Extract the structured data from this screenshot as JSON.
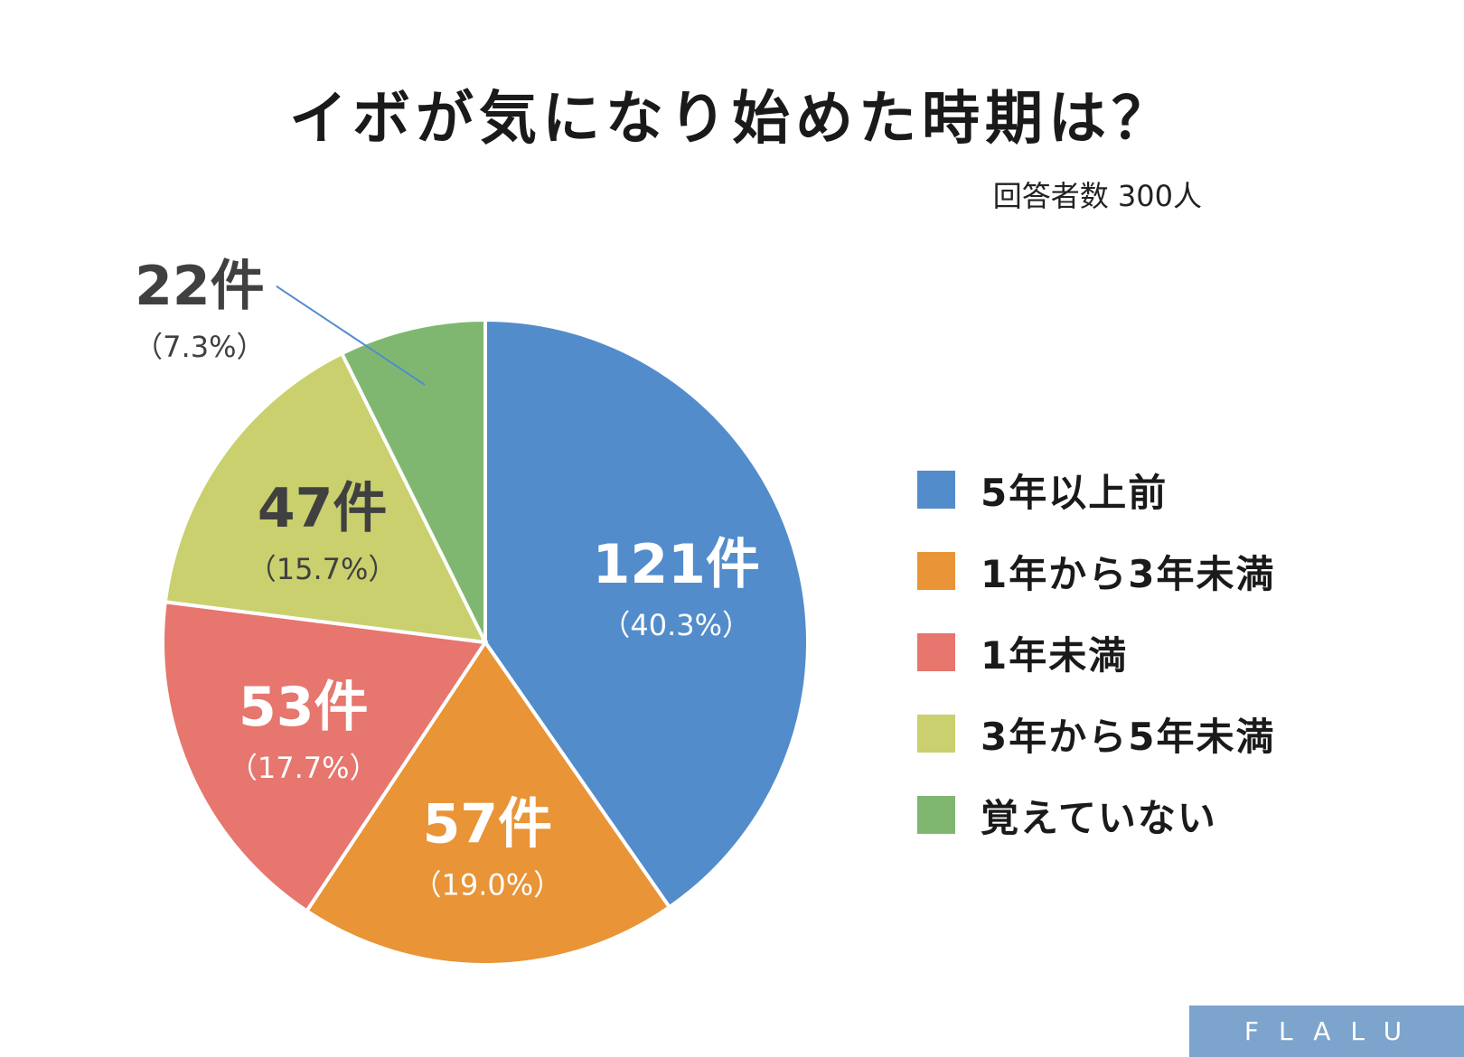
{
  "chart_data": {
    "type": "pie",
    "title": "イボが気になり始めた時期は？",
    "subtitle": "回答者数 300人",
    "total": 300,
    "start_at_top": true,
    "direction": "clockwise",
    "slices": [
      {
        "label": "5年以上前",
        "value": 121,
        "count_label": "121件",
        "percent_label": "（40.3%）",
        "color": "#538ccb",
        "label_color": "#ffffff"
      },
      {
        "label": "1年から3年未満",
        "value": 57,
        "count_label": "57件",
        "percent_label": "（19.0%）",
        "color": "#e89437",
        "label_color": "#ffffff"
      },
      {
        "label": "1年未満",
        "value": 53,
        "count_label": "53件",
        "percent_label": "（17.7%）",
        "color": "#e6766e",
        "label_color": "#ffffff"
      },
      {
        "label": "3年から5年未満",
        "value": 47,
        "count_label": "47件",
        "percent_label": "（15.7%）",
        "color": "#c9d06d",
        "label_color": "#404040"
      },
      {
        "label": "覚えていない",
        "value": 22,
        "count_label": "22件",
        "percent_label": "（7.3%）",
        "color": "#7fb771",
        "label_color": "#404040",
        "label_outside": true
      }
    ],
    "legend": {
      "position": "right",
      "items": [
        "5年以上前",
        "3年から5年未満",
        "1年未満",
        "1年から3年未満",
        "覚えていない"
      ]
    }
  },
  "brand": "FLALU"
}
